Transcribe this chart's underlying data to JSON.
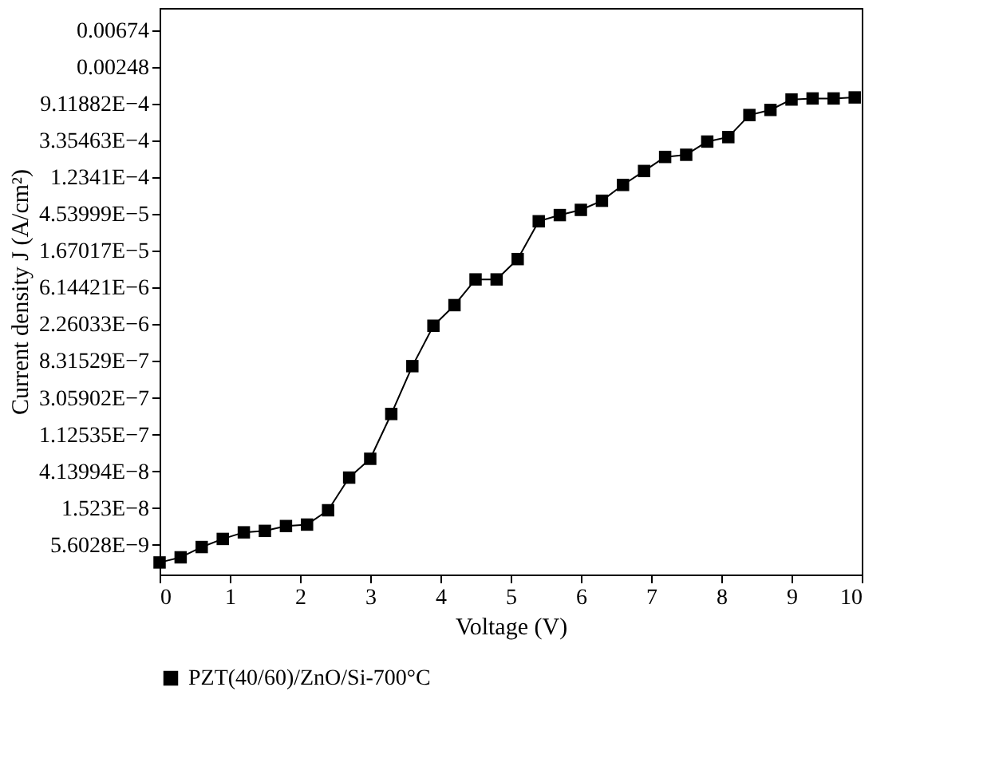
{
  "chart_data": {
    "type": "line",
    "xlabel": "Voltage (V)",
    "ylabel": "Current density J (A/cm²)",
    "log": "y",
    "marker": "square",
    "line_style": "solid",
    "legend": "bottom",
    "grid": false,
    "x": [
      0,
      0.3,
      0.6,
      0.9,
      1.2,
      1.5,
      1.8,
      2.1,
      2.4,
      2.7,
      3.0,
      3.3,
      3.6,
      3.9,
      4.2,
      4.5,
      4.8,
      5.1,
      5.4,
      5.7,
      6.0,
      6.3,
      6.6,
      6.9,
      7.2,
      7.5,
      7.8,
      8.1,
      8.4,
      8.7,
      9.0,
      9.3,
      9.6,
      9.9
    ],
    "series": [
      {
        "name": "PZT(40/60)/ZnO/Si-700°C",
        "color": "#000000",
        "values": [
          3.47e-09,
          3.99e-09,
          5.28e-09,
          6.58e-09,
          7.87e-09,
          8.19e-09,
          9.34e-09,
          9.72e-09,
          1.435e-08,
          3.49e-08,
          5.82e-08,
          1.97e-07,
          7.23e-07,
          2.17e-06,
          3.8e-06,
          7.65e-06,
          7.65e-06,
          1.33e-05,
          3.72e-05,
          4.4e-05,
          5.07e-05,
          6.5e-05,
          0.0001,
          0.000146,
          0.000214,
          0.000227,
          0.000325,
          0.000367,
          0.000669,
          0.000769,
          0.00102,
          0.00105,
          0.00105,
          0.00108
        ]
      }
    ],
    "xlim": [
      0,
      10
    ],
    "xticks": [
      0,
      1,
      2,
      3,
      4,
      5,
      6,
      7,
      8,
      9,
      10
    ],
    "ylim": [
      2.5e-09,
      0.0123
    ],
    "yticks": [
      {
        "value": 0.006737947,
        "label": "0.00674"
      },
      {
        "value": 0.002478752,
        "label": "0.00248"
      },
      {
        "value": 0.000911882,
        "label": "9.11882E−4"
      },
      {
        "value": 0.0003354626,
        "label": "3.35463E−4"
      },
      {
        "value": 0.0001234098,
        "label": "1.2341E−4"
      },
      {
        "value": 4.539993e-05,
        "label": "4.53999E−5"
      },
      {
        "value": 1.67017e-05,
        "label": "1.67017E−5"
      },
      {
        "value": 6.144212e-06,
        "label": "6.14421E−6"
      },
      {
        "value": 2.260329e-06,
        "label": "2.26033E−6"
      },
      {
        "value": 8.315287e-07,
        "label": "8.31529E−7"
      },
      {
        "value": 3.059023e-07,
        "label": "3.05902E−7"
      },
      {
        "value": 1.125352e-07,
        "label": "1.12535E−7"
      },
      {
        "value": 4.139938e-08,
        "label": "4.13994E−8"
      },
      {
        "value": 1.522998e-08,
        "label": "1.523E−8"
      },
      {
        "value": 5.602796e-09,
        "label": "5.6028E−9"
      }
    ]
  }
}
